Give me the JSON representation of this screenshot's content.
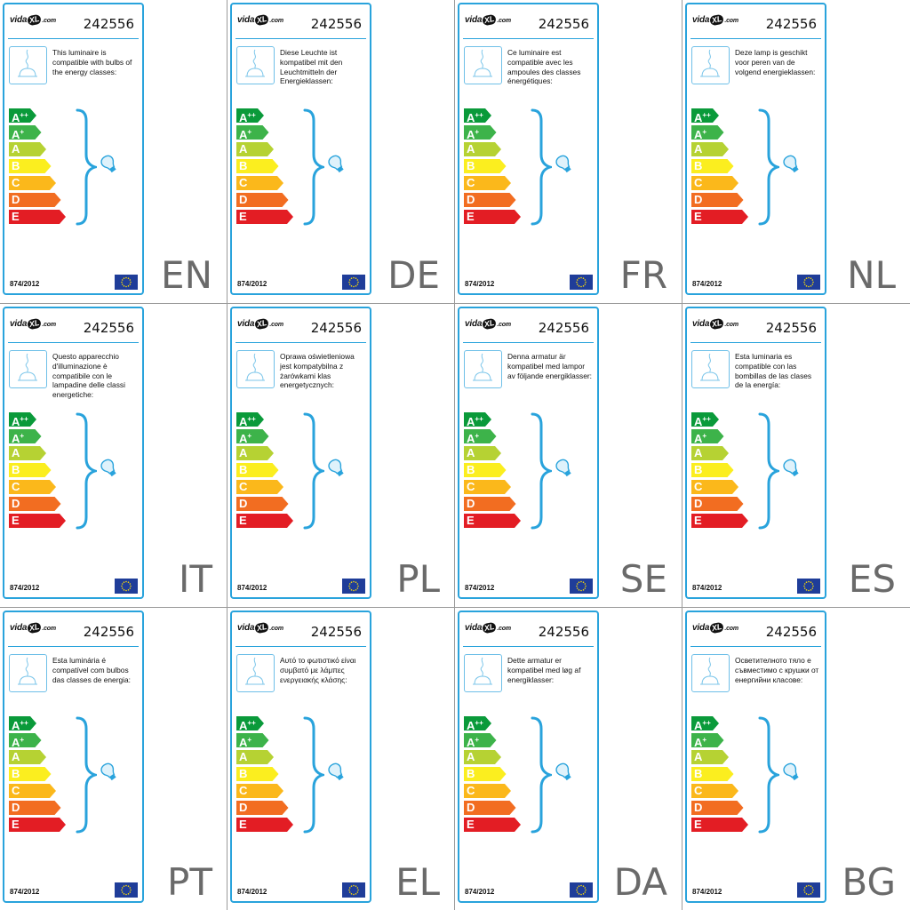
{
  "brand": {
    "logo_a": "vida",
    "logo_b": "XL",
    "logo_c": ".com"
  },
  "product_code": "242556",
  "regulation": "874/2012",
  "energy_classes": [
    {
      "letter": "A",
      "sup": "++",
      "color": "#0a9a3a"
    },
    {
      "letter": "A",
      "sup": "+",
      "color": "#3db34a"
    },
    {
      "letter": "A",
      "sup": "",
      "color": "#b6d233"
    },
    {
      "letter": "B",
      "sup": "",
      "color": "#fbee1f"
    },
    {
      "letter": "C",
      "sup": "",
      "color": "#fbb81b"
    },
    {
      "letter": "D",
      "sup": "",
      "color": "#f26d21"
    },
    {
      "letter": "E",
      "sup": "",
      "color": "#e31d24"
    }
  ],
  "colors": {
    "frame": "#29a3dc",
    "eu_flag": "#1f3d99",
    "eu_star": "#ffdd00",
    "lang_code": "#6a6a6a"
  },
  "icons": {
    "lamp": "pendant-lamp-icon",
    "bulb": "light-bulb-icon",
    "flag": "eu-flag-icon"
  },
  "labels": [
    {
      "lang": "EN",
      "text": "This luminaire is compatible with bulbs of the energy classes:"
    },
    {
      "lang": "DE",
      "text": "Diese Leuchte ist kompatibel mit den Leuchtmitteln der Energieklassen:"
    },
    {
      "lang": "FR",
      "text": "Ce luminaire est compatible avec les ampoules des classes énergétiques:"
    },
    {
      "lang": "NL",
      "text": "Deze lamp is geschikt voor peren van de volgend energieklassen:"
    },
    {
      "lang": "IT",
      "text": "Questo apparecchio d'illuminazione è compatibile con le lampadine delle classi energetiche:"
    },
    {
      "lang": "PL",
      "text": "Oprawa oświetleniowa jest kompatybilna z żarówkami klas energetycznych:"
    },
    {
      "lang": "SE",
      "text": "Denna armatur är kompatibel med lampor av följande energiklasser:"
    },
    {
      "lang": "ES",
      "text": "Esta luminaria es compatible con las bombillas de las clases de la energía:"
    },
    {
      "lang": "PT",
      "text": "Esta luminária é compatível com bulbos das classes de energia:"
    },
    {
      "lang": "EL",
      "text": "Αυτό το φωτιστικό είναι συμβατό με λάμπες ενεργειακής κλάσης:"
    },
    {
      "lang": "DA",
      "text": "Dette armatur er kompatibel med løg af energiklasser:"
    },
    {
      "lang": "BG",
      "text": "Осветителното тяло е съвместимо с крушки от енергийни класове:"
    }
  ]
}
